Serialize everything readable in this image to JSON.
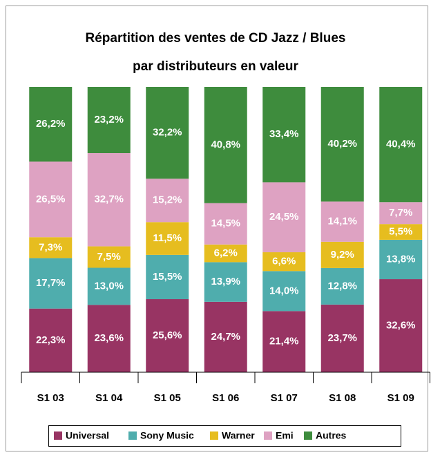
{
  "chart_data": {
    "type": "stacked_bar",
    "title": [
      "Répartition des ventes de CD Jazz / Blues",
      "par distributeurs en valeur"
    ],
    "categories": [
      "S1 03",
      "S1 04",
      "S1 05",
      "S1 06",
      "S1 07",
      "S1 08",
      "S1 09"
    ],
    "series": [
      {
        "name": "Universal",
        "color": "#983463",
        "values": [
          22.3,
          23.6,
          25.6,
          24.7,
          21.4,
          23.7,
          32.6
        ],
        "value_labels": [
          "22,3%",
          "23,6%",
          "25,6%",
          "24,7%",
          "21,4%",
          "23,7%",
          "32,6%"
        ]
      },
      {
        "name": "Sony Music",
        "color": "#4fadad",
        "values": [
          17.7,
          13.0,
          15.5,
          13.9,
          14.0,
          12.8,
          13.8
        ],
        "value_labels": [
          "17,7%",
          "13,0%",
          "15,5%",
          "13,9%",
          "14,0%",
          "12,8%",
          "13,8%"
        ]
      },
      {
        "name": "Warner",
        "color": "#e6bd1f",
        "values": [
          7.3,
          7.5,
          11.5,
          6.2,
          6.6,
          9.2,
          5.5
        ],
        "value_labels": [
          "7,3%",
          "7,5%",
          "11,5%",
          "6,2%",
          "6,6%",
          "9,2%",
          "5,5%"
        ]
      },
      {
        "name": "Emi",
        "color": "#dea2c2",
        "values": [
          26.5,
          32.7,
          15.2,
          14.5,
          24.5,
          14.1,
          7.7
        ],
        "value_labels": [
          "26,5%",
          "32,7%",
          "15,2%",
          "14,5%",
          "24,5%",
          "14,1%",
          "7,7%"
        ]
      },
      {
        "name": "Autres",
        "color": "#3e8c3d",
        "values": [
          26.2,
          23.2,
          32.2,
          40.8,
          33.4,
          40.2,
          40.4
        ],
        "value_labels": [
          "26,2%",
          "23,2%",
          "32,2%",
          "40,8%",
          "33,4%",
          "40,2%",
          "40,4%"
        ]
      }
    ]
  }
}
